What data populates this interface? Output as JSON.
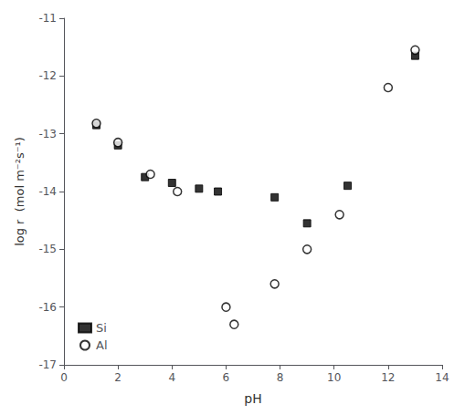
{
  "chart_data": {
    "type": "scatter",
    "xlabel": "pH",
    "ylabel": "log r  (mol m⁻²s⁻¹)",
    "xlim": [
      0,
      14
    ],
    "ylim": [
      -17,
      -11
    ],
    "xticks": [
      0,
      2,
      4,
      6,
      8,
      10,
      12,
      14
    ],
    "yticks": [
      -17,
      -16,
      -15,
      -14,
      -13,
      -12,
      -11
    ],
    "grid": false,
    "legend": "lower left",
    "series": [
      {
        "name": "Si",
        "color": "#000000",
        "marker": "square",
        "x": [
          1.2,
          2.0,
          3.0,
          4.0,
          5.0,
          5.7,
          7.8,
          9.0,
          10.5,
          13.0
        ],
        "values": [
          -12.85,
          -13.2,
          -13.75,
          -13.85,
          -13.95,
          -14.0,
          -14.1,
          -14.55,
          -13.9,
          -11.65
        ]
      },
      {
        "name": "Al",
        "color": "#000000",
        "marker": "open circle",
        "x": [
          1.2,
          2.0,
          3.2,
          4.2,
          6.0,
          6.3,
          7.8,
          9.0,
          10.2,
          12.0,
          13.0
        ],
        "values": [
          -12.82,
          -13.15,
          -13.7,
          -14.0,
          -16.0,
          -16.3,
          -15.6,
          -15.0,
          -14.4,
          -12.2,
          -11.55
        ]
      }
    ]
  }
}
